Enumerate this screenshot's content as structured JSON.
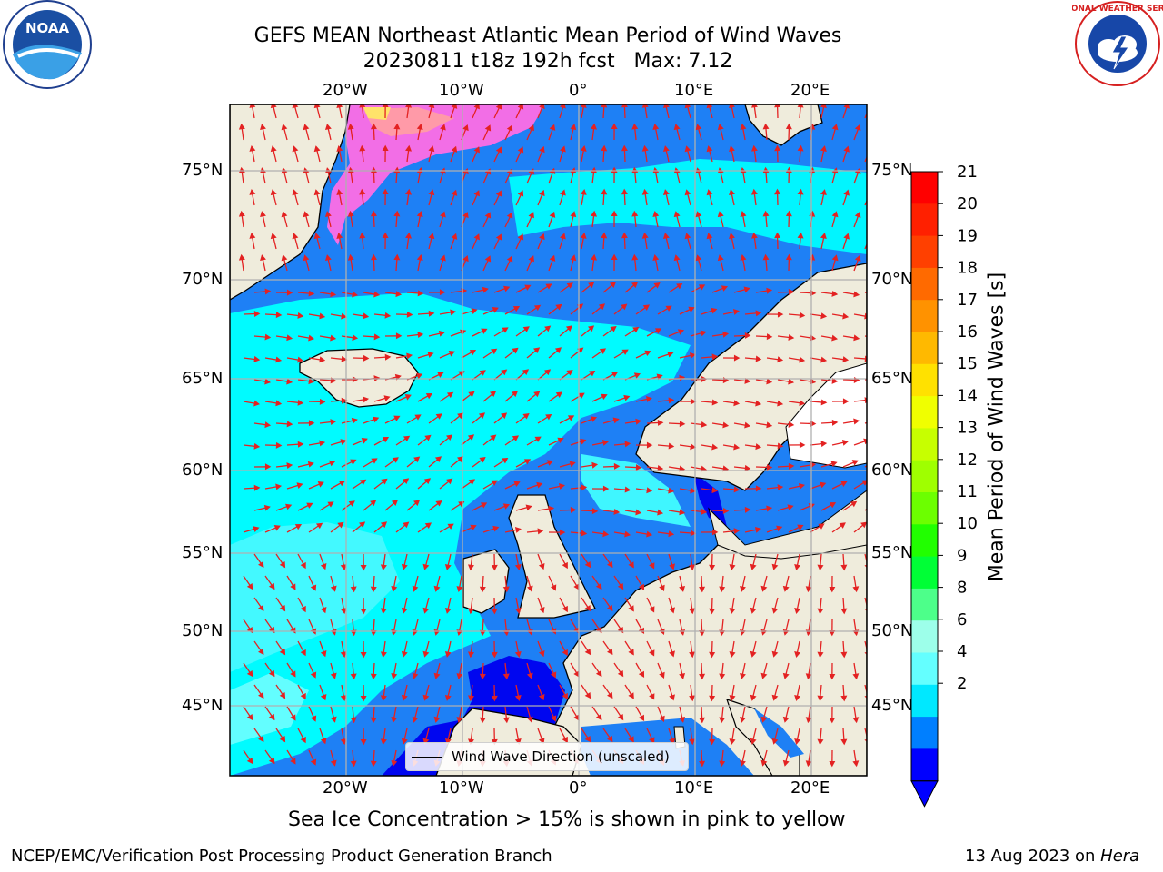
{
  "header": {
    "title_line1": "GEFS MEAN Northeast Atlantic Mean Period of Wind Waves",
    "title_line2": "20230811 t18z 192h fcst   Max: 7.12"
  },
  "logos": {
    "left": "NOAA",
    "right": "NATIONAL WEATHER SERVICE"
  },
  "axes": {
    "lon_labels": [
      "20°W",
      "10°W",
      "0°",
      "10°E",
      "20°E"
    ],
    "lat_labels": [
      "75°N",
      "70°N",
      "65°N",
      "60°N",
      "55°N",
      "50°N",
      "45°N"
    ]
  },
  "colorbar": {
    "label": "Mean Period of Wind Waves [s]",
    "ticks": [
      "21",
      "20",
      "19",
      "18",
      "17",
      "16",
      "15",
      "14",
      "13",
      "12",
      "11",
      "10",
      "9",
      "8",
      "6",
      "4",
      "2"
    ],
    "colors": [
      "#ff0000",
      "#ff2000",
      "#ff4000",
      "#ff6a00",
      "#ff9200",
      "#ffb900",
      "#ffe100",
      "#f0ff00",
      "#c7ff00",
      "#9fff00",
      "#6cff00",
      "#21ff00",
      "#00ff36",
      "#4dff8a",
      "#9dffea",
      "#64ffff",
      "#00e8ff",
      "#007fff",
      "#0000ff"
    ]
  },
  "legend": {
    "label": "Wind Wave Direction (unscaled)"
  },
  "caption": "Sea Ice Concentration > 15% is shown in pink to yellow",
  "footer": {
    "left": "NCEP/EMC/Verification Post Processing Product Generation Branch",
    "right_date": "13 Aug 2023 on ",
    "right_host": "Hera"
  }
}
